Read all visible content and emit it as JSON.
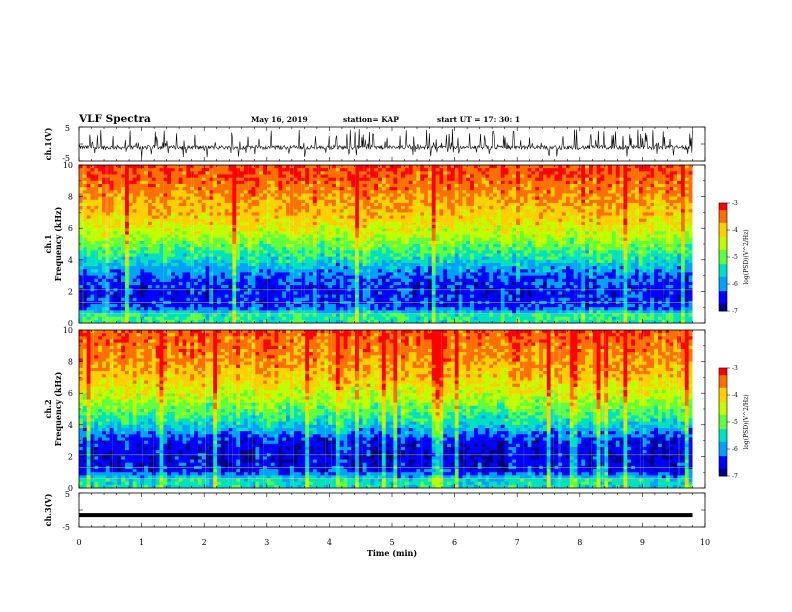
{
  "header": {
    "title": "VLF Spectra",
    "date": "May 16, 2019",
    "station": "station= KAP",
    "start": "start  UT =   17: 30: 1"
  },
  "colors": {
    "colormap": [
      "#000080",
      "#0000ff",
      "#00a0ff",
      "#00e0c0",
      "#60ff40",
      "#c0ff00",
      "#ffd000",
      "#ff7000",
      "#ff0000",
      "#ffffff"
    ]
  },
  "chart_data": [
    {
      "type": "line",
      "name": "ch1-waveform",
      "ylabel": "ch.1(V)",
      "xlim": [
        0,
        10
      ],
      "ylim": [
        -5,
        5
      ],
      "yticks": [
        "5",
        "-5"
      ],
      "description_values": {
        "baseline_v": -1.0,
        "spike_max_v": 4.5,
        "end_time_min": 9.8
      }
    },
    {
      "type": "heatmap",
      "name": "ch1-spectrogram",
      "ylabel": "ch.1\nFrequency (kHz)",
      "ylabel_line1": "ch.1",
      "ylabel_line2": "Frequency (kHz)",
      "xlim": [
        0,
        10
      ],
      "ylim": [
        0,
        10
      ],
      "yticks": [
        "0",
        "2",
        "4",
        "6",
        "8",
        "10"
      ],
      "colorbar": {
        "label": "log(PSD)(V^2/Hz)",
        "range": [
          -7,
          -3
        ],
        "ticks": [
          "-3",
          "-4",
          "-5",
          "-6",
          "-7"
        ]
      },
      "approx_log_psd_by_freq_khz": [
        {
          "freq": 0.5,
          "value": -5.3
        },
        {
          "freq": 1.0,
          "value": -6.3
        },
        {
          "freq": 2.0,
          "value": -6.5
        },
        {
          "freq": 3.0,
          "value": -6.2
        },
        {
          "freq": 4.0,
          "value": -5.5
        },
        {
          "freq": 5.0,
          "value": -4.9
        },
        {
          "freq": 6.0,
          "value": -4.3
        },
        {
          "freq": 7.0,
          "value": -3.9
        },
        {
          "freq": 8.0,
          "value": -3.7
        },
        {
          "freq": 9.0,
          "value": -3.4
        },
        {
          "freq": 10.0,
          "value": -3.2
        }
      ]
    },
    {
      "type": "heatmap",
      "name": "ch2-spectrogram",
      "ylabel_line1": "ch.2",
      "ylabel_line2": "Frequency (kHz)",
      "xlim": [
        0,
        10
      ],
      "ylim": [
        0,
        10
      ],
      "yticks": [
        "0",
        "2",
        "4",
        "6",
        "8",
        "10"
      ],
      "colorbar": {
        "label": "log(PSD)(V^2/Hz)",
        "range": [
          -7,
          -3
        ],
        "ticks": [
          "-3",
          "-4",
          "-5",
          "-6",
          "-7"
        ]
      },
      "approx_log_psd_by_freq_khz": [
        {
          "freq": 0.5,
          "value": -5.5
        },
        {
          "freq": 1.0,
          "value": -6.4
        },
        {
          "freq": 2.0,
          "value": -6.7
        },
        {
          "freq": 3.0,
          "value": -6.5
        },
        {
          "freq": 4.0,
          "value": -5.6
        },
        {
          "freq": 5.0,
          "value": -5.0
        },
        {
          "freq": 6.0,
          "value": -4.4
        },
        {
          "freq": 7.0,
          "value": -4.0
        },
        {
          "freq": 8.0,
          "value": -3.7
        },
        {
          "freq": 9.0,
          "value": -3.5
        },
        {
          "freq": 10.0,
          "value": -3.3
        }
      ]
    },
    {
      "type": "line",
      "name": "ch3-waveform",
      "ylabel": "ch.3(V)",
      "xlim": [
        0,
        10
      ],
      "ylim": [
        -5,
        5
      ],
      "yticks": [
        "5",
        "-5"
      ],
      "description_values": {
        "baseline_v": -1.5,
        "end_time_min": 9.8
      }
    }
  ],
  "xaxis": {
    "label": "Time (min)",
    "ticks": [
      "0",
      "1",
      "2",
      "3",
      "4",
      "5",
      "6",
      "7",
      "8",
      "9",
      "10"
    ]
  }
}
